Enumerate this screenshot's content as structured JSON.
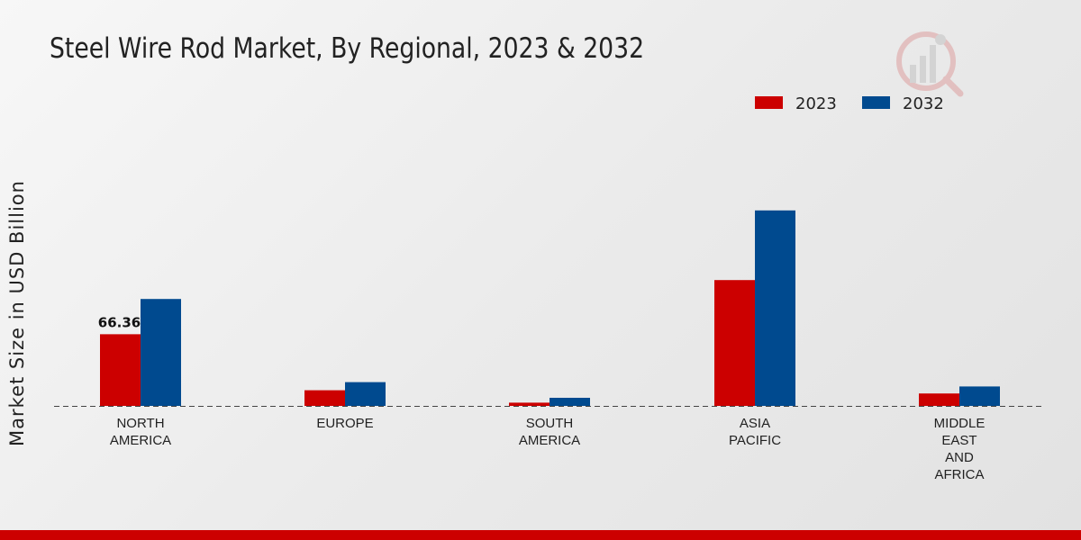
{
  "chart_data": {
    "type": "bar",
    "title": "Steel Wire Rod Market, By Regional, 2023 & 2032",
    "xlabel": "",
    "ylabel": "Market Size in USD Billion",
    "categories": [
      [
        "NORTH",
        "AMERICA"
      ],
      [
        "EUROPE"
      ],
      [
        "SOUTH",
        "AMERICA"
      ],
      [
        "ASIA",
        "PACIFIC"
      ],
      [
        "MIDDLE",
        "EAST",
        "AND",
        "AFRICA"
      ]
    ],
    "series": [
      {
        "name": "2023",
        "color": "#cc0000",
        "values": [
          66.36,
          14.5,
          3.0,
          116.5,
          11.5
        ]
      },
      {
        "name": "2032",
        "color": "#004a8f",
        "values": [
          99.0,
          22.0,
          7.5,
          181.0,
          18.0
        ]
      }
    ],
    "data_labels": [
      {
        "series": 0,
        "index": 0,
        "text": "66.36"
      }
    ],
    "ylim": [
      0,
      250
    ],
    "legend_position": "top-right",
    "grid": false
  }
}
